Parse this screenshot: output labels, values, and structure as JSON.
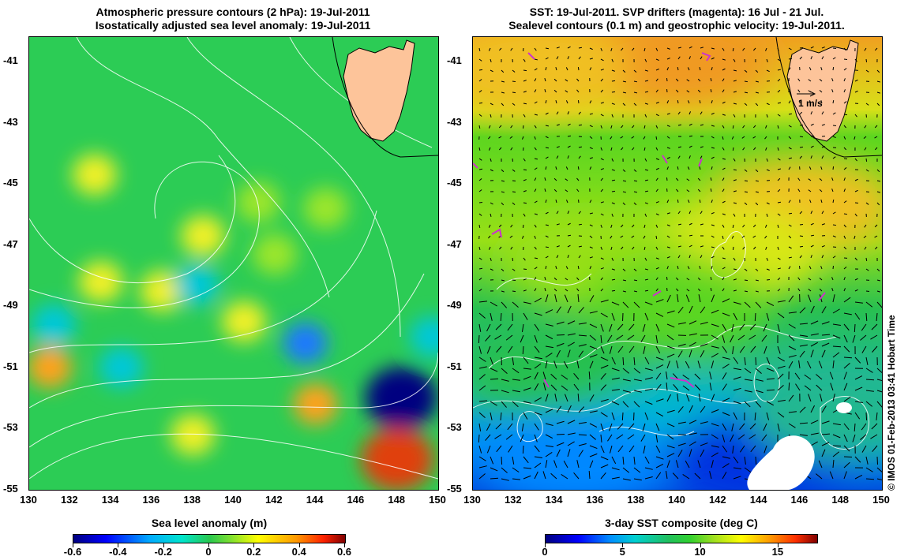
{
  "left_panel": {
    "title_line1": "Atmospheric pressure contours (2 hPa): 19-Jul-2011",
    "title_line2": "Isostatically adjusted sea level anomaly: 19-Jul-2011",
    "colorbar_label": "Sea level anomaly (m)",
    "colorbar_ticks": [
      "-0.6",
      "-0.4",
      "-0.2",
      "0",
      "0.2",
      "0.4",
      "0.6"
    ]
  },
  "right_panel": {
    "title_line1": "SST: 19-Jul-2011. SVP drifters (magenta): 16 Jul - 21 Jul.",
    "title_line2": "Sealevel contours (0.1 m) and geostrophic velocity: 19-Jul-2011.",
    "colorbar_label": "3-day SST composite (deg C)",
    "colorbar_ticks": [
      "0",
      "5",
      "10",
      "15"
    ],
    "velocity_scale_label": "1 m/s"
  },
  "lat_ticks": [
    "-41",
    "-43",
    "-45",
    "-47",
    "-49",
    "-51",
    "-53",
    "-55"
  ],
  "lon_ticks": [
    "130",
    "132",
    "134",
    "136",
    "138",
    "140",
    "142",
    "144",
    "146",
    "148",
    "150"
  ],
  "credit": "© IMOS 01-Feb-2013 03:41 Hobart Time",
  "colors": {
    "land": "#fdc49a",
    "drifters": "#cc33cc"
  },
  "map_data": {
    "extent": {
      "lon": [
        130,
        150
      ],
      "lat": [
        -55,
        -40.2
      ]
    },
    "sla_field": [
      {
        "lon": 148.2,
        "lat": -52.0,
        "value": -0.6
      },
      {
        "lon": 148.0,
        "lat": -54.0,
        "value": 0.5
      },
      {
        "lon": 144.0,
        "lat": -52.2,
        "value": 0.4
      },
      {
        "lon": 143.5,
        "lat": -50.2,
        "value": -0.25
      },
      {
        "lon": 138.0,
        "lat": -53.2,
        "value": 0.28
      },
      {
        "lon": 131.0,
        "lat": -51.0,
        "value": 0.3
      },
      {
        "lon": 133.5,
        "lat": -48.2,
        "value": 0.28
      },
      {
        "lon": 140.5,
        "lat": -49.5,
        "value": 0.25
      },
      {
        "lon": 136.5,
        "lat": -48.5,
        "value": 0.2
      },
      {
        "lon": 138.2,
        "lat": -48.3,
        "value": -0.18
      },
      {
        "lon": 131.2,
        "lat": -49.6,
        "value": -0.15
      },
      {
        "lon": 149.7,
        "lat": -50.0,
        "value": -0.18
      },
      {
        "lon": 138.5,
        "lat": -46.7,
        "value": 0.22
      },
      {
        "lon": 141.2,
        "lat": -45.6,
        "value": 0.18
      },
      {
        "lon": 133.2,
        "lat": -44.7,
        "value": 0.2
      },
      {
        "lon": 144.5,
        "lat": -45.8,
        "value": 0.18
      },
      {
        "lon": 142.0,
        "lat": -47.3,
        "value": 0.15
      },
      {
        "lon": 134.5,
        "lat": -51.0,
        "value": -0.12
      }
    ],
    "sst_field": [
      {
        "lon": 140.0,
        "lat": -41.0,
        "value": 15.5
      },
      {
        "lon": 133.0,
        "lat": -41.2,
        "value": 14.5
      },
      {
        "lon": 146.0,
        "lat": -45.7,
        "value": 14.0
      },
      {
        "lon": 142.5,
        "lat": -47.2,
        "value": 13.0
      },
      {
        "lon": 136.0,
        "lat": -47.5,
        "value": 11.5
      },
      {
        "lon": 140.0,
        "lat": -49.0,
        "value": 10.0
      },
      {
        "lon": 134.0,
        "lat": -51.0,
        "value": 8.0
      },
      {
        "lon": 140.0,
        "lat": -53.0,
        "value": 5.0
      },
      {
        "lon": 135.0,
        "lat": -54.0,
        "value": 4.0
      },
      {
        "lon": 144.0,
        "lat": -54.0,
        "value": 2.5
      },
      {
        "lon": 148.0,
        "lat": -52.5,
        "value": 7.5
      }
    ]
  }
}
